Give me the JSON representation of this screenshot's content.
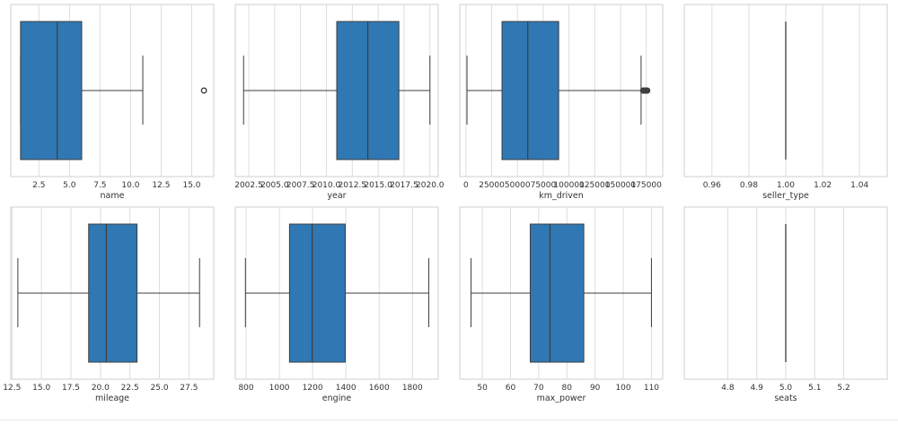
{
  "colors": {
    "box_fill": "#2f78b4",
    "line": "#3d3d3d",
    "grid": "#dddddd",
    "frame": "#cfcfcf"
  },
  "chart_data": [
    {
      "type": "box",
      "xlabel": "name",
      "xlim": [
        0.2,
        16.8
      ],
      "ticks": [
        2.5,
        5.0,
        7.5,
        10.0,
        12.5,
        15.0
      ],
      "tick_labels": [
        "2.5",
        "5.0",
        "7.5",
        "10.0",
        "12.5",
        "15.0"
      ],
      "grid": true,
      "box": {
        "whisker_low": 1,
        "q1": 1,
        "median": 4,
        "q3": 6,
        "whisker_high": 11
      },
      "outliers": [
        16
      ]
    },
    {
      "type": "box",
      "xlabel": "year",
      "xlim": [
        2001.2,
        2020.8
      ],
      "ticks": [
        2002.5,
        2005.0,
        2007.5,
        2010.0,
        2012.5,
        2015.0,
        2017.5,
        2020.0
      ],
      "tick_labels": [
        "2002.5",
        "2005.0",
        "2007.5",
        "2010.0",
        "2012.5",
        "2015.0",
        "2017.5",
        "2020.0"
      ],
      "grid": true,
      "box": {
        "whisker_low": 2002,
        "q1": 2011,
        "median": 2014,
        "q3": 2017,
        "whisker_high": 2020
      },
      "outliers": []
    },
    {
      "type": "box",
      "xlabel": "km_driven",
      "xlim": [
        -6000,
        191000
      ],
      "ticks": [
        0,
        25000,
        50000,
        75000,
        100000,
        125000,
        150000,
        175000
      ],
      "tick_labels": [
        "0",
        "25000",
        "50000",
        "75000",
        "100000",
        "125000",
        "150000",
        "175000"
      ],
      "grid": true,
      "box": {
        "whisker_low": 1000,
        "q1": 35000,
        "median": 60000,
        "q3": 90000,
        "whisker_high": 170000
      },
      "outliers": [
        172000,
        173000,
        174000,
        175000,
        176000
      ]
    },
    {
      "type": "box",
      "xlabel": "seller_type",
      "xlim": [
        0.945,
        1.055
      ],
      "ticks": [
        0.96,
        0.98,
        1.0,
        1.02,
        1.04
      ],
      "tick_labels": [
        "0.96",
        "0.98",
        "1.00",
        "1.02",
        "1.04"
      ],
      "grid": true,
      "box": {
        "whisker_low": 1,
        "q1": 1,
        "median": 1,
        "q3": 1,
        "whisker_high": 1
      },
      "outliers": []
    },
    {
      "type": "box",
      "xlabel": "mileage",
      "xlim": [
        12.4,
        29.6
      ],
      "ticks": [
        12.5,
        15.0,
        17.5,
        20.0,
        22.5,
        25.0,
        27.5
      ],
      "tick_labels": [
        "12.5",
        "15.0",
        "17.5",
        "20.0",
        "22.5",
        "25.0",
        "27.5"
      ],
      "grid": true,
      "box": {
        "whisker_low": 13.0,
        "q1": 19.0,
        "median": 20.5,
        "q3": 23.1,
        "whisker_high": 28.4
      },
      "outliers": []
    },
    {
      "type": "box",
      "xlabel": "engine",
      "xlim": [
        735,
        1955
      ],
      "ticks": [
        800,
        1000,
        1200,
        1400,
        1600,
        1800
      ],
      "tick_labels": [
        "800",
        "1000",
        "1200",
        "1400",
        "1600",
        "1800"
      ],
      "grid": true,
      "box": {
        "whisker_low": 796,
        "q1": 1061,
        "median": 1197,
        "q3": 1396,
        "whisker_high": 1898
      },
      "outliers": []
    },
    {
      "type": "box",
      "xlabel": "max_power",
      "xlim": [
        42,
        114
      ],
      "ticks": [
        50,
        60,
        70,
        80,
        90,
        100,
        110
      ],
      "tick_labels": [
        "50",
        "60",
        "70",
        "80",
        "90",
        "100",
        "110"
      ],
      "grid": true,
      "box": {
        "whisker_low": 46,
        "q1": 67,
        "median": 74,
        "q3": 86,
        "whisker_high": 110
      },
      "outliers": []
    },
    {
      "type": "box",
      "xlabel": "seats",
      "xlim": [
        4.65,
        5.35
      ],
      "ticks": [
        4.8,
        4.9,
        5.0,
        5.1,
        5.2
      ],
      "tick_labels": [
        "4.8",
        "4.9",
        "5.0",
        "5.1",
        "5.2"
      ],
      "grid": true,
      "box": {
        "whisker_low": 5,
        "q1": 5,
        "median": 5,
        "q3": 5,
        "whisker_high": 5
      },
      "outliers": []
    }
  ]
}
